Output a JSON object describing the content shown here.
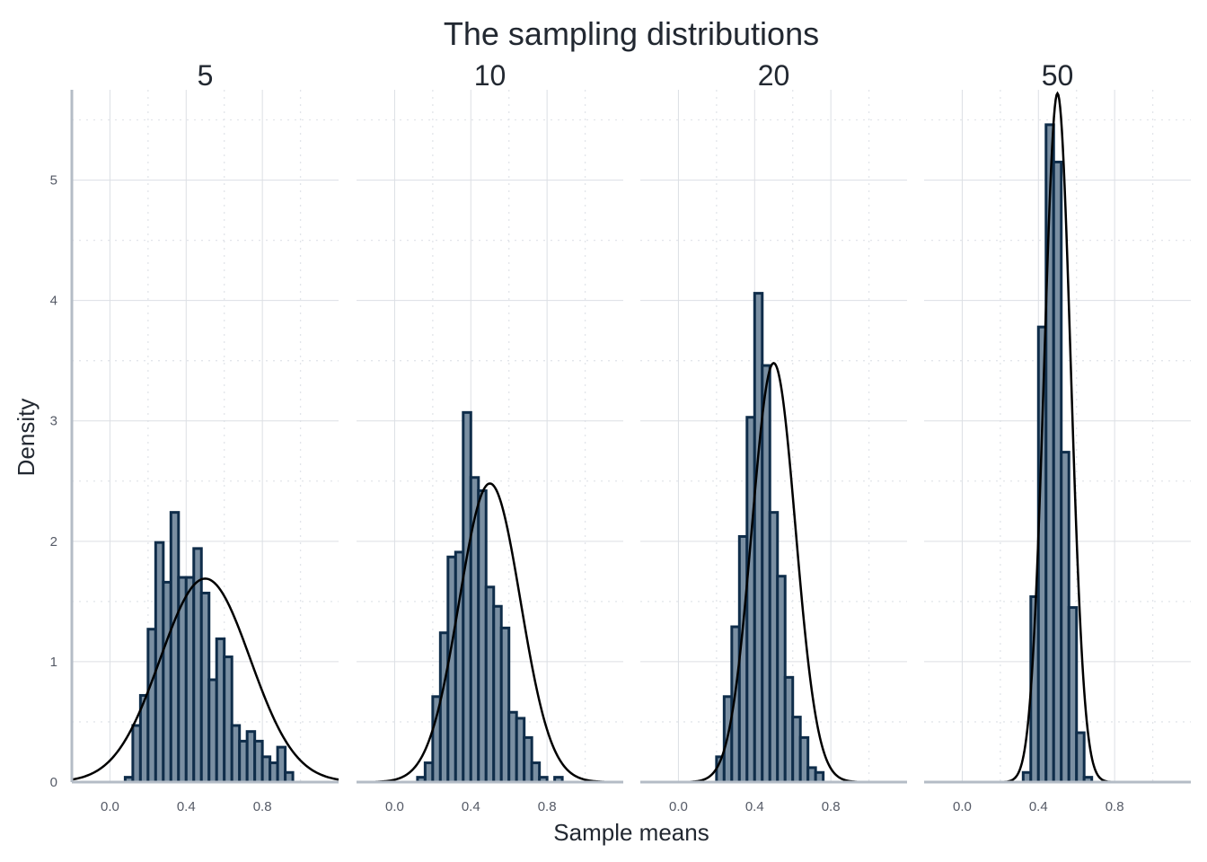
{
  "title": "The sampling distributions",
  "xlabel": "Sample means",
  "ylabel": "Density",
  "colors": {
    "bar_fill": "#7a8fa2",
    "bar_stroke": "#0f2d4a",
    "curve": "#000000",
    "axis_line": "#b4bcc6"
  },
  "chart_data": [
    {
      "type": "bar",
      "panel": "5",
      "xlim": [
        -0.2,
        1.2
      ],
      "ylim": [
        0,
        5.75
      ],
      "x_ticks": [
        "0.0",
        "0.4",
        "0.8"
      ],
      "y_ticks": [
        "0",
        "1",
        "2",
        "3",
        "4",
        "5"
      ],
      "grid": true,
      "binwidth": 0.04,
      "bins": [
        {
          "x": 0.1,
          "y": 0.04
        },
        {
          "x": 0.14,
          "y": 0.47
        },
        {
          "x": 0.18,
          "y": 0.72
        },
        {
          "x": 0.22,
          "y": 1.27
        },
        {
          "x": 0.26,
          "y": 1.99
        },
        {
          "x": 0.3,
          "y": 1.66
        },
        {
          "x": 0.34,
          "y": 2.24
        },
        {
          "x": 0.38,
          "y": 1.7
        },
        {
          "x": 0.42,
          "y": 1.7
        },
        {
          "x": 0.46,
          "y": 1.94
        },
        {
          "x": 0.5,
          "y": 1.57
        },
        {
          "x": 0.54,
          "y": 0.85
        },
        {
          "x": 0.58,
          "y": 1.19
        },
        {
          "x": 0.62,
          "y": 1.04
        },
        {
          "x": 0.66,
          "y": 0.47
        },
        {
          "x": 0.7,
          "y": 0.34
        },
        {
          "x": 0.74,
          "y": 0.42
        },
        {
          "x": 0.78,
          "y": 0.34
        },
        {
          "x": 0.82,
          "y": 0.21
        },
        {
          "x": 0.86,
          "y": 0.16
        },
        {
          "x": 0.9,
          "y": 0.29
        },
        {
          "x": 0.94,
          "y": 0.08
        }
      ],
      "normal_curve": {
        "mean": 0.5,
        "peak_density": 1.69
      }
    },
    {
      "type": "bar",
      "panel": "10",
      "xlim": [
        -0.2,
        1.2
      ],
      "ylim": [
        0,
        5.75
      ],
      "x_ticks": [
        "0.0",
        "0.4",
        "0.8"
      ],
      "grid": true,
      "binwidth": 0.04,
      "bins": [
        {
          "x": 0.14,
          "y": 0.04
        },
        {
          "x": 0.18,
          "y": 0.16
        },
        {
          "x": 0.22,
          "y": 0.71
        },
        {
          "x": 0.26,
          "y": 1.24
        },
        {
          "x": 0.3,
          "y": 1.87
        },
        {
          "x": 0.34,
          "y": 1.91
        },
        {
          "x": 0.38,
          "y": 3.07
        },
        {
          "x": 0.42,
          "y": 2.53
        },
        {
          "x": 0.46,
          "y": 2.42
        },
        {
          "x": 0.5,
          "y": 1.62
        },
        {
          "x": 0.54,
          "y": 1.46
        },
        {
          "x": 0.58,
          "y": 1.28
        },
        {
          "x": 0.62,
          "y": 0.58
        },
        {
          "x": 0.66,
          "y": 0.53
        },
        {
          "x": 0.7,
          "y": 0.37
        },
        {
          "x": 0.74,
          "y": 0.16
        },
        {
          "x": 0.78,
          "y": 0.04
        },
        {
          "x": 0.86,
          "y": 0.04
        }
      ],
      "normal_curve": {
        "mean": 0.5,
        "peak_density": 2.48
      }
    },
    {
      "type": "bar",
      "panel": "20",
      "xlim": [
        -0.2,
        1.2
      ],
      "ylim": [
        0,
        5.75
      ],
      "x_ticks": [
        "0.0",
        "0.4",
        "0.8"
      ],
      "grid": true,
      "binwidth": 0.04,
      "bins": [
        {
          "x": 0.22,
          "y": 0.21
        },
        {
          "x": 0.26,
          "y": 0.71
        },
        {
          "x": 0.3,
          "y": 1.29
        },
        {
          "x": 0.34,
          "y": 2.04
        },
        {
          "x": 0.38,
          "y": 3.03
        },
        {
          "x": 0.42,
          "y": 4.06
        },
        {
          "x": 0.46,
          "y": 3.46
        },
        {
          "x": 0.5,
          "y": 2.24
        },
        {
          "x": 0.54,
          "y": 1.71
        },
        {
          "x": 0.58,
          "y": 0.87
        },
        {
          "x": 0.62,
          "y": 0.54
        },
        {
          "x": 0.66,
          "y": 0.37
        },
        {
          "x": 0.7,
          "y": 0.12
        },
        {
          "x": 0.74,
          "y": 0.08
        }
      ],
      "normal_curve": {
        "mean": 0.5,
        "peak_density": 3.48
      }
    },
    {
      "type": "bar",
      "panel": "50",
      "xlim": [
        -0.2,
        1.2
      ],
      "ylim": [
        0,
        5.75
      ],
      "x_ticks": [
        "0.0",
        "0.4",
        "0.8"
      ],
      "grid": true,
      "binwidth": 0.04,
      "bins": [
        {
          "x": 0.34,
          "y": 0.08
        },
        {
          "x": 0.38,
          "y": 1.54
        },
        {
          "x": 0.42,
          "y": 3.78
        },
        {
          "x": 0.46,
          "y": 5.46
        },
        {
          "x": 0.5,
          "y": 5.15
        },
        {
          "x": 0.54,
          "y": 2.74
        },
        {
          "x": 0.58,
          "y": 1.45
        },
        {
          "x": 0.62,
          "y": 0.41
        },
        {
          "x": 0.66,
          "y": 0.04
        }
      ],
      "normal_curve": {
        "mean": 0.5,
        "peak_density": 5.72
      }
    }
  ]
}
